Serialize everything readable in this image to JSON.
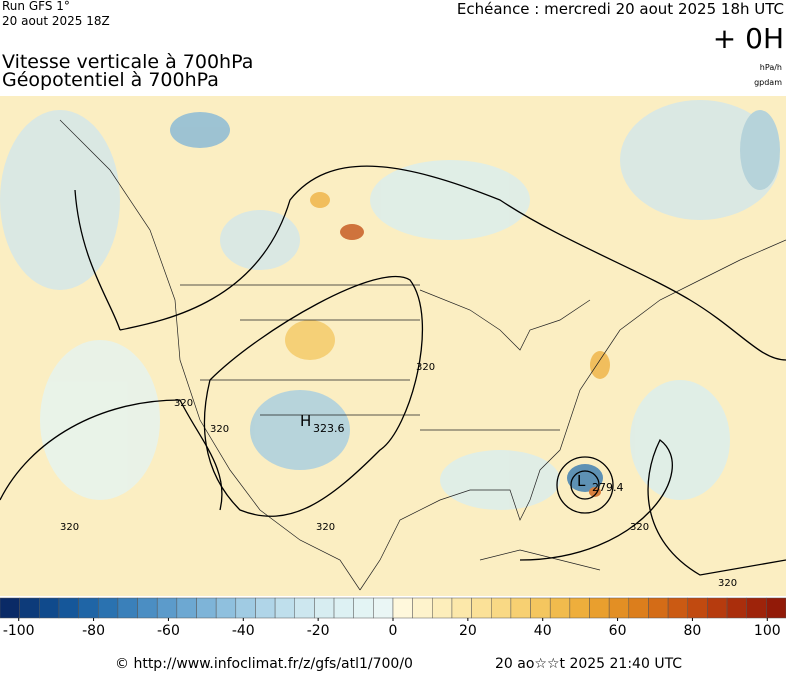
{
  "header": {
    "run": "Run GFS 1°",
    "run_date": "20 aout 2025 18Z",
    "echeance": "Echéance : mercredi 20 aout 2025 18h UTC",
    "lead": "+ 0H",
    "title1": "Vitesse verticale à 700hPa",
    "title2": "Géopotentiel à 700hPa",
    "unit1": "hPa/h",
    "unit2": "gpdam"
  },
  "map": {
    "high": {
      "label": "H",
      "value": "323.6"
    },
    "low": {
      "label": "L",
      "value": "279.4"
    },
    "contour_labels": [
      "320",
      "320",
      "320",
      "320",
      "320",
      "320",
      "320"
    ]
  },
  "colorbar": {
    "lim": [
      -105,
      105
    ],
    "ticks": [
      -100,
      -80,
      -60,
      -40,
      -20,
      0,
      20,
      40,
      60,
      80,
      100
    ],
    "colors": [
      "#0a2a66",
      "#0d3b7a",
      "#104a8c",
      "#15579a",
      "#1f65a6",
      "#2a72b0",
      "#3a80ba",
      "#4b8ec3",
      "#5c9bcb",
      "#6da8d2",
      "#7eb4d8",
      "#8fc0de",
      "#a0cbe3",
      "#b0d5e8",
      "#bfdfec",
      "#cde7ef",
      "#d7edf1",
      "#ddf1f3",
      "#e3f4f4",
      "#eaf6f5",
      "#fff8dc",
      "#fef3cc",
      "#fdeebb",
      "#fce8aa",
      "#fbe198",
      "#f9d985",
      "#f7d072",
      "#f4c65f",
      "#f1bb4d",
      "#eeae3c",
      "#e99f2e",
      "#e38f24",
      "#dc7e1c",
      "#d46c17",
      "#cb5a13",
      "#c14a10",
      "#b63b0e",
      "#aa2e0c",
      "#9e230a",
      "#921a08"
    ]
  },
  "footer": {
    "source": "© http://www.infoclimat.fr/z/gfs/atl1/700/0",
    "timestamp": "20 ao☆☆t 2025 21:40 UTC"
  }
}
